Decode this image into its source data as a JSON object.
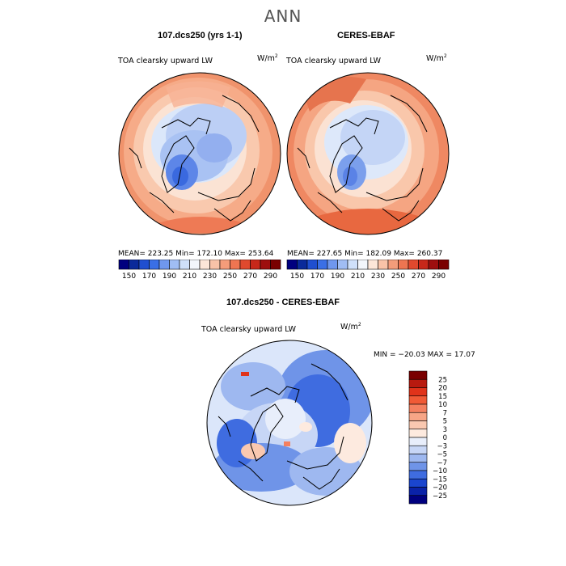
{
  "figure": {
    "title": "ANN",
    "panel_left_title": "107.dcs250 (yrs 1-1)",
    "panel_right_title": "CERES-EBAF",
    "panel_diff_title": "107.dcs250 - CERES-EBAF",
    "variable_label": "TOA clearsky upward LW",
    "units_base": "W/m",
    "units_exp": "2"
  },
  "left_panel": {
    "stats": "MEAN= 223.25   Min= 172.10   Max= 253.64"
  },
  "right_panel": {
    "stats": "MEAN= 227.65   Min= 182.09   Max= 260.37"
  },
  "diff_panel": {
    "stats": "MIN = −20.03 MAX =  17.07"
  },
  "colorbar_abs": {
    "labels": [
      "150",
      "170",
      "190",
      "210",
      "230",
      "250",
      "270",
      "290"
    ],
    "colors": [
      "#00007f",
      "#0a2a9a",
      "#1f4fd0",
      "#3a6fe6",
      "#6f97ee",
      "#a0bdf4",
      "#cfe0fa",
      "#f3f6fb",
      "#fde6d8",
      "#f9c3a8",
      "#f49c7a",
      "#ee7551",
      "#e0492e",
      "#c7281a",
      "#9e0f0f",
      "#7a0000"
    ]
  },
  "colorbar_diff": {
    "labels": [
      "25",
      "20",
      "15",
      "10",
      "7",
      "5",
      "3",
      "0",
      "−3",
      "−5",
      "−7",
      "−10",
      "−15",
      "−20",
      "−25"
    ],
    "colors": [
      "#7a0000",
      "#b81a0f",
      "#e0331a",
      "#f05a36",
      "#f48060",
      "#f7a586",
      "#fac8b0",
      "#fdeadf",
      "#e8eefb",
      "#c7d6f6",
      "#9eb8f0",
      "#6f94e8",
      "#3f6ce0",
      "#1a45cf",
      "#0a22a8",
      "#00007f"
    ]
  }
}
